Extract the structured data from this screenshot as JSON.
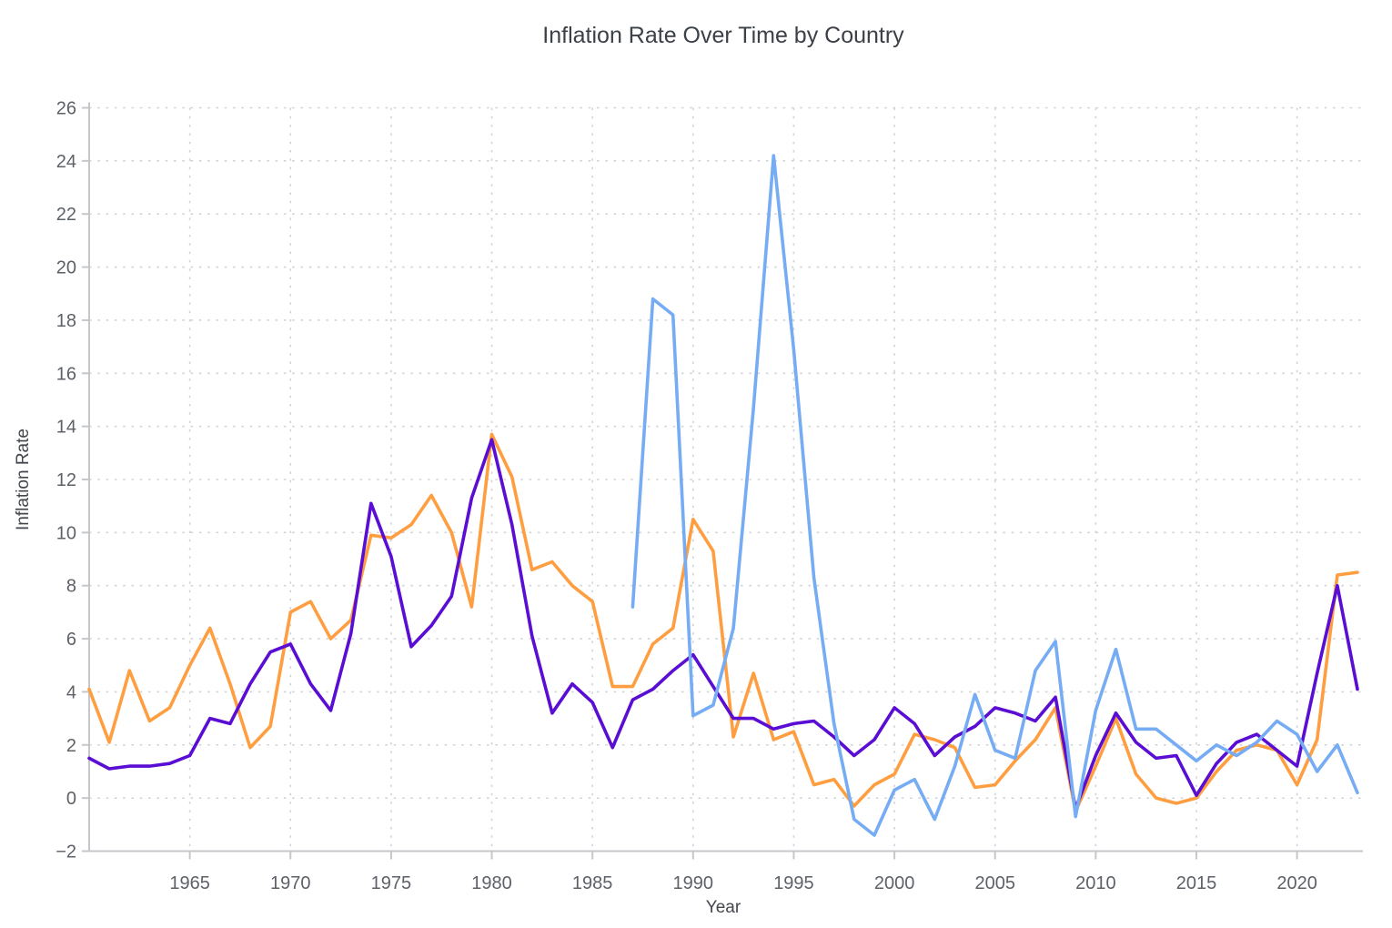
{
  "chart_data": {
    "type": "line",
    "title": "Inflation Rate Over Time by Country",
    "xlabel": "Year",
    "ylabel": "Inflation Rate",
    "xlim": [
      1960,
      2023
    ],
    "ylim": [
      -2,
      26
    ],
    "x_ticks": [
      1965,
      1970,
      1975,
      1980,
      1985,
      1990,
      1995,
      2000,
      2005,
      2010,
      2015,
      2020
    ],
    "y_ticks": [
      -2,
      0,
      2,
      4,
      6,
      8,
      10,
      12,
      14,
      16,
      18,
      20,
      22,
      24,
      26
    ],
    "grid": true,
    "grid_style": "dotted",
    "legend_position": "none",
    "background_color": "#ffffff",
    "grid_color": "#d2d3d7",
    "axis_color": "#c5c7cb",
    "tick_label_color": "#5d6168",
    "title_color": "#3c4047",
    "series": [
      {
        "name": "orange-series",
        "color": "#FF9E40",
        "line_width": 3.6,
        "start_year": 1960,
        "end_year": 2023,
        "values": [
          4.1,
          2.1,
          4.8,
          2.9,
          3.4,
          5.0,
          6.4,
          4.3,
          1.9,
          2.7,
          7.0,
          7.4,
          6.0,
          6.7,
          9.9,
          9.8,
          10.3,
          11.4,
          10.0,
          7.2,
          13.7,
          12.1,
          8.6,
          8.9,
          8.0,
          7.4,
          4.2,
          4.2,
          5.8,
          6.4,
          10.5,
          9.3,
          2.3,
          4.7,
          2.2,
          2.5,
          0.5,
          0.7,
          -0.3,
          0.5,
          0.9,
          2.4,
          2.2,
          1.9,
          0.4,
          0.5,
          1.4,
          2.2,
          3.4,
          -0.5,
          1.2,
          3.0,
          0.9,
          0.0,
          -0.2,
          0.0,
          1.0,
          1.8,
          2.0,
          1.8,
          0.5,
          2.2,
          8.4,
          8.5
        ]
      },
      {
        "name": "purple-series",
        "color": "#5A0DD3",
        "line_width": 3.6,
        "start_year": 1960,
        "end_year": 2023,
        "values": [
          1.5,
          1.1,
          1.2,
          1.2,
          1.3,
          1.6,
          3.0,
          2.8,
          4.3,
          5.5,
          5.8,
          4.3,
          3.3,
          6.2,
          11.1,
          9.1,
          5.7,
          6.5,
          7.6,
          11.3,
          13.5,
          10.3,
          6.1,
          3.2,
          4.3,
          3.6,
          1.9,
          3.7,
          4.1,
          4.8,
          5.4,
          4.2,
          3.0,
          3.0,
          2.6,
          2.8,
          2.9,
          2.3,
          1.6,
          2.2,
          3.4,
          2.8,
          1.6,
          2.3,
          2.7,
          3.4,
          3.2,
          2.9,
          3.8,
          -0.4,
          1.6,
          3.2,
          2.1,
          1.5,
          1.6,
          0.1,
          1.3,
          2.1,
          2.4,
          1.8,
          1.2,
          4.7,
          8.0,
          4.1
        ]
      },
      {
        "name": "blue-series",
        "color": "#76ACF3",
        "line_width": 3.6,
        "start_year": 1987,
        "end_year": 2023,
        "values": [
          7.2,
          18.8,
          18.2,
          3.1,
          3.5,
          6.4,
          14.7,
          24.2,
          16.9,
          8.3,
          2.8,
          -0.8,
          -1.4,
          0.3,
          0.7,
          -0.8,
          1.2,
          3.9,
          1.8,
          1.5,
          4.8,
          5.9,
          -0.7,
          3.3,
          5.6,
          2.6,
          2.6,
          2.0,
          1.4,
          2.0,
          1.6,
          2.1,
          2.9,
          2.4,
          1.0,
          2.0,
          0.2
        ]
      }
    ]
  }
}
